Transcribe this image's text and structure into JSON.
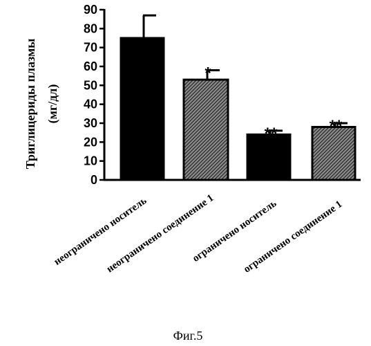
{
  "chart_data": {
    "type": "bar",
    "ylabel_line1": "Триглицериды плазмы",
    "ylabel_line2": "(мг/дл)",
    "ylim": [
      0,
      90
    ],
    "yticks": [
      "0",
      "10",
      "20",
      "30",
      "40",
      "50",
      "60",
      "70",
      "80",
      "90"
    ],
    "categories": [
      "неограничено носитель",
      "неограничено соединение 1",
      "ограничено носитель",
      "ограничено соединение 1"
    ],
    "values": [
      75,
      53,
      24,
      28
    ],
    "errors": [
      12,
      5,
      2,
      2
    ],
    "significance": [
      "",
      "*",
      "**",
      "**"
    ],
    "bar_fills": [
      "solid-black",
      "hatched-gray",
      "solid-black",
      "hatched-gray"
    ]
  },
  "caption": "Фиг.5"
}
